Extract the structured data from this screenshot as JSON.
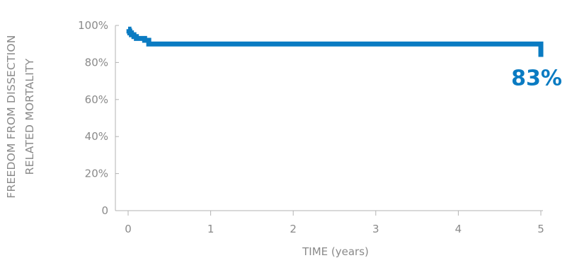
{
  "chart_data": {
    "type": "line",
    "step": true,
    "title": "",
    "xlabel": "TIME (years)",
    "ylabel": [
      "FREEDOM FROM DISSECTION",
      "RELATED MORTALITY"
    ],
    "xlim": [
      0,
      5
    ],
    "ylim": [
      0,
      100
    ],
    "x_ticks": [
      0,
      1,
      2,
      3,
      4,
      5
    ],
    "x_tick_labels": [
      "0",
      "1",
      "2",
      "3",
      "4",
      "5"
    ],
    "y_ticks": [
      0,
      20,
      40,
      60,
      80,
      100
    ],
    "y_tick_labels": [
      "0",
      "20%",
      "40%",
      "60%",
      "80%",
      "100%"
    ],
    "grid": false,
    "series": [
      {
        "color": "#0a7bc2",
        "x": [
          0,
          0.01,
          0.02,
          0.04,
          0.07,
          0.1,
          0.2,
          0.25,
          4.5,
          5.0,
          5.0
        ],
        "y": [
          98,
          97,
          96,
          95,
          94,
          93,
          92,
          90,
          90,
          87,
          83
        ]
      }
    ],
    "annotations": [
      {
        "text": "83%",
        "x": 5.0,
        "y": 83,
        "color": "#0a7bc2"
      }
    ]
  }
}
